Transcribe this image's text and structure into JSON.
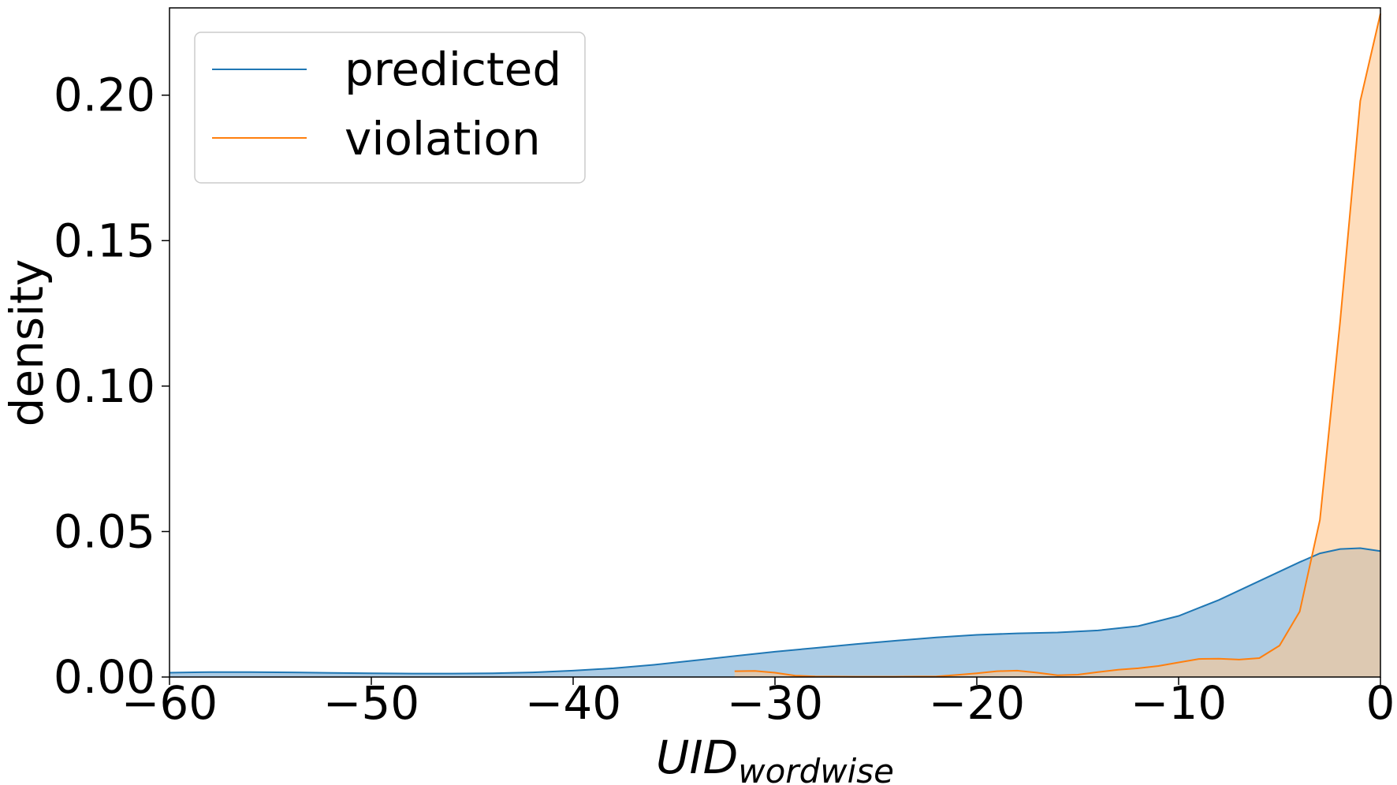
{
  "chart_data": {
    "type": "area",
    "title": "",
    "xlabel": "UID",
    "xlabel_subscript": "wordwise",
    "ylabel": "density",
    "xlim": [
      -60,
      0
    ],
    "ylim": [
      0,
      0.23
    ],
    "x_ticks": [
      -60,
      -50,
      -40,
      -30,
      -20,
      -10,
      0
    ],
    "x_tick_labels": [
      "−60",
      "−50",
      "−40",
      "−30",
      "−20",
      "−10",
      "0"
    ],
    "y_ticks": [
      0,
      0.05,
      0.1,
      0.15,
      0.2
    ],
    "y_tick_labels": [
      "0.00",
      "0.05",
      "0.10",
      "0.15",
      "0.20"
    ],
    "grid": false,
    "legend_position": "top-left",
    "series": [
      {
        "name": "predicted",
        "color": "#1f77b4",
        "fill": "#a3c7e2",
        "points": [
          [
            -60,
            0.0015
          ],
          [
            -58,
            0.0017
          ],
          [
            -56,
            0.0017
          ],
          [
            -54,
            0.0016
          ],
          [
            -52,
            0.0014
          ],
          [
            -50,
            0.0013
          ],
          [
            -48,
            0.0012
          ],
          [
            -46,
            0.0012
          ],
          [
            -44,
            0.0013
          ],
          [
            -42,
            0.0016
          ],
          [
            -40,
            0.0022
          ],
          [
            -38,
            0.003
          ],
          [
            -36,
            0.0042
          ],
          [
            -34,
            0.0057
          ],
          [
            -32,
            0.0072
          ],
          [
            -30,
            0.0087
          ],
          [
            -28,
            0.01
          ],
          [
            -26,
            0.0113
          ],
          [
            -24,
            0.0125
          ],
          [
            -22,
            0.0136
          ],
          [
            -20,
            0.0145
          ],
          [
            -18,
            0.015
          ],
          [
            -16,
            0.0153
          ],
          [
            -14,
            0.016
          ],
          [
            -12,
            0.0175
          ],
          [
            -10,
            0.021
          ],
          [
            -8,
            0.0265
          ],
          [
            -6,
            0.033
          ],
          [
            -4,
            0.0395
          ],
          [
            -3,
            0.0425
          ],
          [
            -2,
            0.044
          ],
          [
            -1,
            0.0443
          ],
          [
            0,
            0.0433
          ]
        ]
      },
      {
        "name": "violation",
        "color": "#ff7f0e",
        "fill": "#fdc690",
        "points": [
          [
            -32,
            0.002
          ],
          [
            -31,
            0.0021
          ],
          [
            -30,
            0.0015
          ],
          [
            -29,
            0.0005
          ],
          [
            -28,
            0.0002
          ],
          [
            -26,
            0.0001
          ],
          [
            -24,
            0.0001
          ],
          [
            -22,
            0.0002
          ],
          [
            -21,
            0.0007
          ],
          [
            -20,
            0.0013
          ],
          [
            -19,
            0.002
          ],
          [
            -18,
            0.0022
          ],
          [
            -17,
            0.0015
          ],
          [
            -16,
            0.0006
          ],
          [
            -15,
            0.0008
          ],
          [
            -14,
            0.0017
          ],
          [
            -13,
            0.0025
          ],
          [
            -12,
            0.003
          ],
          [
            -11,
            0.0038
          ],
          [
            -10,
            0.005
          ],
          [
            -9,
            0.0062
          ],
          [
            -8,
            0.0063
          ],
          [
            -7,
            0.006
          ],
          [
            -6,
            0.0065
          ],
          [
            -5,
            0.0108
          ],
          [
            -4,
            0.0225
          ],
          [
            -3,
            0.054
          ],
          [
            -2,
            0.122
          ],
          [
            -1,
            0.198
          ],
          [
            0,
            0.228
          ]
        ]
      }
    ]
  }
}
